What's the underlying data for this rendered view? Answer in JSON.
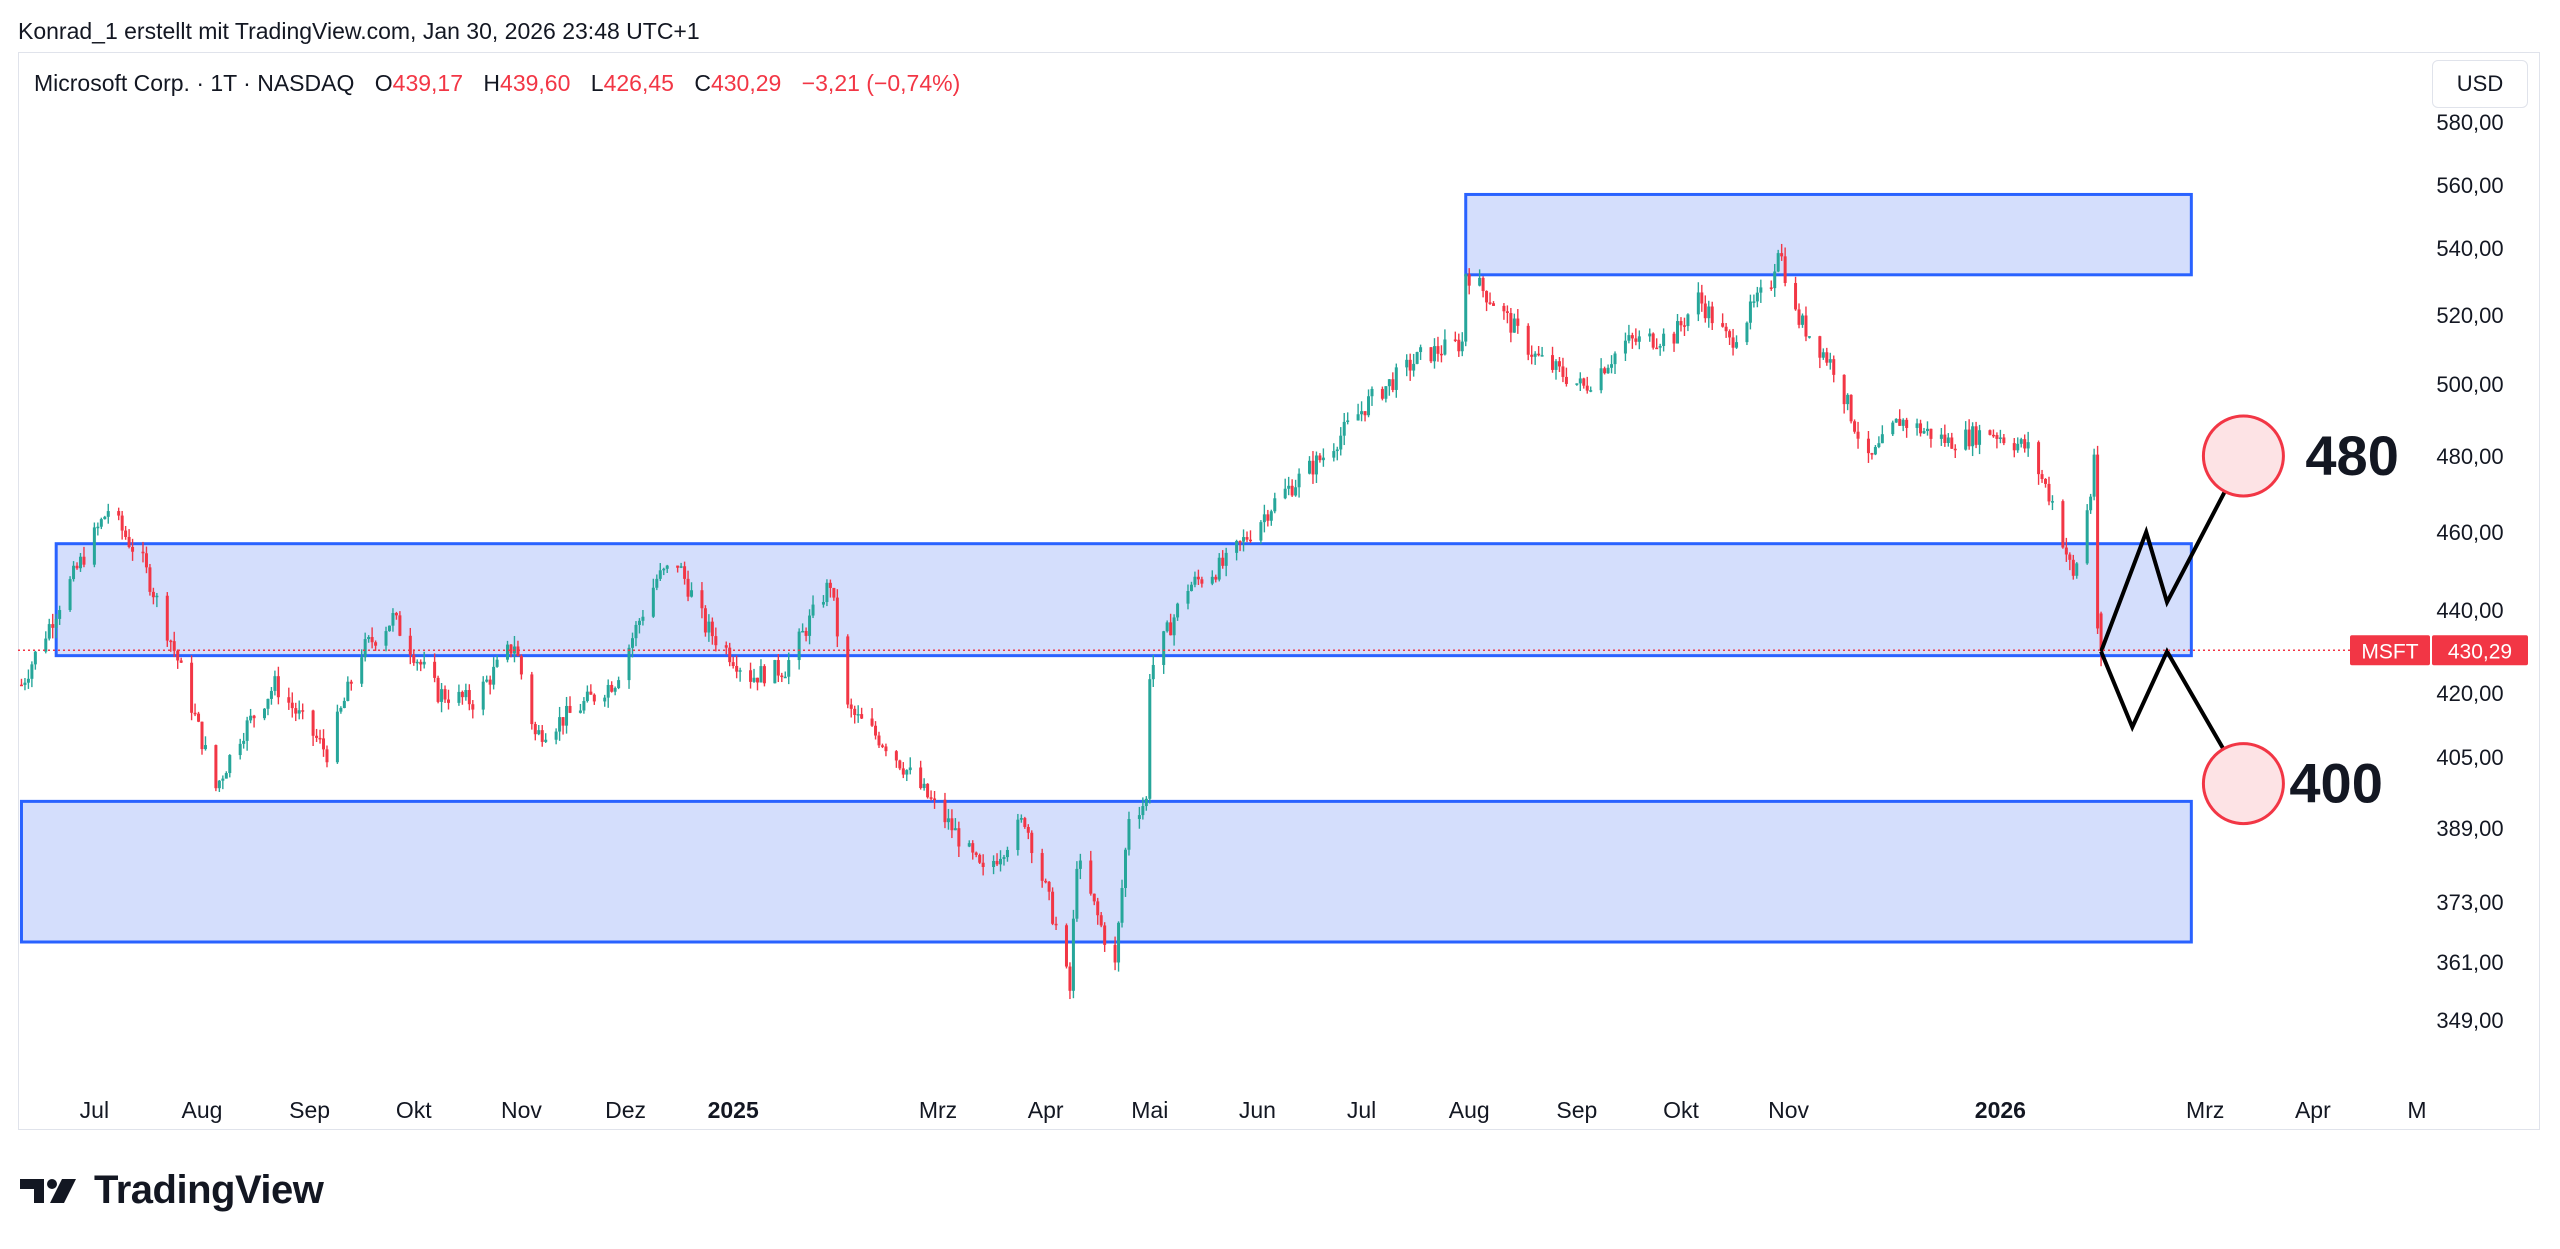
{
  "header": {
    "credit": "Konrad_1 erstellt mit TradingView.com, Jan 30, 2026 23:48 UTC+1"
  },
  "legend": {
    "symbol": "Microsoft Corp. · 1T · NASDAQ",
    "open_label": "O",
    "open": "439,17",
    "high_label": "H",
    "high": "439,60",
    "low_label": "L",
    "low": "426,45",
    "close_label": "C",
    "close": "430,29",
    "change": "−3,21 (−0,74%)"
  },
  "currency_button": "USD",
  "price_tag": {
    "symbol": "MSFT",
    "value": "430,29"
  },
  "brand": "TradingView",
  "colors": {
    "up": "#26a69a",
    "down": "#f23645",
    "zone_fill": "#d4defc",
    "zone_border": "#2962ff"
  },
  "chart_data": {
    "type": "candlestick",
    "symbol": "MSFT",
    "interval": "1T",
    "y_ticks": [
      "580,00",
      "560,00",
      "540,00",
      "520,00",
      "500,00",
      "480,00",
      "460,00",
      "440,00",
      "420,00",
      "405,00",
      "389,00",
      "373,00",
      "361,00",
      "349,00"
    ],
    "x_ticks": [
      {
        "label": "Jul",
        "date": "2024-07-01",
        "bold": false
      },
      {
        "label": "Aug",
        "date": "2024-08-01",
        "bold": false
      },
      {
        "label": "Sep",
        "date": "2024-09-01",
        "bold": false
      },
      {
        "label": "Okt",
        "date": "2024-10-01",
        "bold": false
      },
      {
        "label": "Nov",
        "date": "2024-11-01",
        "bold": false
      },
      {
        "label": "Dez",
        "date": "2024-12-01",
        "bold": false
      },
      {
        "label": "2025",
        "date": "2025-01-01",
        "bold": true
      },
      {
        "label": "Mrz",
        "date": "2025-03-01",
        "bold": false
      },
      {
        "label": "Apr",
        "date": "2025-04-01",
        "bold": false
      },
      {
        "label": "Mai",
        "date": "2025-05-01",
        "bold": false
      },
      {
        "label": "Jun",
        "date": "2025-06-01",
        "bold": false
      },
      {
        "label": "Jul",
        "date": "2025-07-01",
        "bold": false
      },
      {
        "label": "Aug",
        "date": "2025-08-01",
        "bold": false
      },
      {
        "label": "Sep",
        "date": "2025-09-01",
        "bold": false
      },
      {
        "label": "Okt",
        "date": "2025-10-01",
        "bold": false
      },
      {
        "label": "Nov",
        "date": "2025-11-01",
        "bold": false
      },
      {
        "label": "2026",
        "date": "2026-01-01",
        "bold": true
      },
      {
        "label": "Mrz",
        "date": "2026-03-01",
        "bold": false
      },
      {
        "label": "Apr",
        "date": "2026-04-01",
        "bold": false
      },
      {
        "label": "M",
        "date": "2026-05-01",
        "bold": false
      }
    ],
    "price_path": [
      [
        "2024-06-10",
        422
      ],
      [
        "2024-06-24",
        447
      ],
      [
        "2024-07-05",
        466
      ],
      [
        "2024-07-15",
        452
      ],
      [
        "2024-07-25",
        428
      ],
      [
        "2024-08-05",
        398
      ],
      [
        "2024-08-12",
        410
      ],
      [
        "2024-08-22",
        422
      ],
      [
        "2024-09-06",
        406
      ],
      [
        "2024-09-16",
        430
      ],
      [
        "2024-09-25",
        438
      ],
      [
        "2024-10-08",
        420
      ],
      [
        "2024-10-18",
        418
      ],
      [
        "2024-10-30",
        432
      ],
      [
        "2024-11-05",
        410
      ],
      [
        "2024-11-15",
        415
      ],
      [
        "2024-11-28",
        423
      ],
      [
        "2024-12-10",
        448
      ],
      [
        "2024-12-16",
        452
      ],
      [
        "2024-12-24",
        436
      ],
      [
        "2025-01-06",
        424
      ],
      [
        "2025-01-16",
        426
      ],
      [
        "2025-01-29",
        447
      ],
      [
        "2025-02-03",
        416
      ],
      [
        "2025-02-14",
        408
      ],
      [
        "2025-02-26",
        396
      ],
      [
        "2025-03-06",
        388
      ],
      [
        "2025-03-14",
        379
      ],
      [
        "2025-03-26",
        391
      ],
      [
        "2025-04-04",
        368
      ],
      [
        "2025-04-08",
        355
      ],
      [
        "2025-04-10",
        382
      ],
      [
        "2025-04-21",
        360
      ],
      [
        "2025-04-25",
        392
      ],
      [
        "2025-04-30",
        395
      ],
      [
        "2025-05-01",
        425
      ],
      [
        "2025-05-12",
        446
      ],
      [
        "2025-05-23",
        452
      ],
      [
        "2025-06-06",
        468
      ],
      [
        "2025-06-20",
        480
      ],
      [
        "2025-07-03",
        495
      ],
      [
        "2025-07-18",
        508
      ],
      [
        "2025-07-30",
        512
      ],
      [
        "2025-07-31",
        533
      ],
      [
        "2025-08-08",
        524
      ],
      [
        "2025-08-20",
        508
      ],
      [
        "2025-09-03",
        499
      ],
      [
        "2025-09-15",
        512
      ],
      [
        "2025-09-29",
        514
      ],
      [
        "2025-10-06",
        525
      ],
      [
        "2025-10-15",
        512
      ],
      [
        "2025-10-27",
        530
      ],
      [
        "2025-10-29",
        541
      ],
      [
        "2025-11-03",
        520
      ],
      [
        "2025-11-14",
        505
      ],
      [
        "2025-11-24",
        478
      ],
      [
        "2025-12-03",
        490
      ],
      [
        "2025-12-17",
        484
      ],
      [
        "2025-12-29",
        487
      ],
      [
        "2026-01-09",
        482
      ],
      [
        "2026-01-16",
        468
      ],
      [
        "2026-01-22",
        448
      ],
      [
        "2026-01-27",
        470
      ],
      [
        "2026-01-28",
        481
      ],
      [
        "2026-01-29",
        433
      ],
      [
        "2026-01-30",
        430.29
      ]
    ],
    "last_candle": {
      "date": "2026-01-30",
      "open": 439.17,
      "high": 439.6,
      "low": 426.45,
      "close": 430.29
    },
    "zones": [
      {
        "name": "zone-resistance-top",
        "x_start": "2025-07-31",
        "x_end": "2026-02-25",
        "y_low": 532,
        "y_high": 557
      },
      {
        "name": "zone-middle",
        "x_start": "2024-06-20",
        "x_end": "2026-02-25",
        "y_low": 429,
        "y_high": 457
      },
      {
        "name": "zone-support-bottom",
        "x_start": "2024-06-10",
        "x_end": "2026-02-25",
        "y_low": 365,
        "y_high": 395
      }
    ],
    "projection_paths": [
      {
        "name": "projection-up",
        "points": [
          [
            "2026-01-30",
            430
          ],
          [
            "2026-02-12",
            460
          ],
          [
            "2026-02-18",
            442
          ],
          [
            "2026-03-12",
            480
          ]
        ]
      },
      {
        "name": "projection-down",
        "points": [
          [
            "2026-01-30",
            430
          ],
          [
            "2026-02-08",
            412
          ],
          [
            "2026-02-18",
            430
          ],
          [
            "2026-03-12",
            399
          ]
        ]
      }
    ],
    "targets": [
      {
        "label": "480",
        "date": "2026-03-12",
        "value": 480
      },
      {
        "label": "400",
        "date": "2026-03-12",
        "value": 399
      }
    ],
    "grid": false
  }
}
